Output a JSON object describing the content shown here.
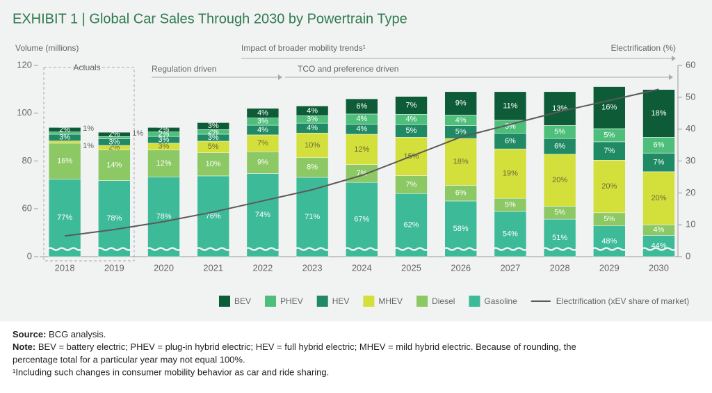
{
  "chart_data": {
    "type": "bar",
    "title": "EXHIBIT 1 | Global Car Sales Through 2030 by Powertrain Type",
    "y_label": "Volume (millions)",
    "y2_label": "Electrification (%)",
    "annotations": {
      "actuals": "Actuals",
      "mobility": "Impact of broader mobility trends¹",
      "regulation": "Regulation driven",
      "tco": "TCO and preference driven"
    },
    "categories": [
      "2018",
      "2019",
      "2020",
      "2021",
      "2022",
      "2023",
      "2024",
      "2025",
      "2026",
      "2027",
      "2028",
      "2029",
      "2030"
    ],
    "totals": [
      94,
      92,
      94,
      97,
      101,
      103,
      106,
      107,
      109,
      109,
      109,
      110,
      111
    ],
    "ylim": [
      0,
      120
    ],
    "yticks": [
      0,
      60,
      80,
      100,
      120
    ],
    "y2lim": [
      0,
      60
    ],
    "y2ticks": [
      0,
      10,
      20,
      30,
      40,
      50,
      60
    ],
    "grid": false,
    "series": [
      {
        "name": "Gasoline",
        "color": "#3dba98",
        "values": [
          77,
          78,
          78,
          76,
          74,
          71,
          67,
          62,
          58,
          54,
          51,
          48,
          44
        ],
        "value_labels": [
          "77%",
          "78%",
          "78%",
          "76%",
          "74%",
          "71%",
          "67%",
          "62%",
          "58%",
          "54%",
          "51%",
          "48%",
          "44%"
        ]
      },
      {
        "name": "Diesel",
        "color": "#8cc863",
        "values": [
          16,
          14,
          12,
          10,
          9,
          8,
          7,
          7,
          6,
          5,
          5,
          5,
          4
        ],
        "value_labels": [
          "16%",
          "14%",
          "12%",
          "10%",
          "9%",
          "8%",
          "7%",
          "7%",
          "6%",
          "5%",
          "5%",
          "5%",
          "4%"
        ]
      },
      {
        "name": "MHEV",
        "color": "#d3df3b",
        "values": [
          1,
          2,
          3,
          5,
          7,
          10,
          12,
          15,
          18,
          19,
          20,
          20,
          20
        ],
        "value_labels": [
          "1%",
          "2%",
          "3%",
          "5%",
          "7%",
          "10%",
          "12%",
          "15%",
          "18%",
          "19%",
          "20%",
          "20%",
          "20%"
        ]
      },
      {
        "name": "HEV",
        "color": "#1f8a64",
        "values": [
          3,
          3,
          3,
          3,
          4,
          4,
          4,
          5,
          5,
          6,
          6,
          7,
          7
        ],
        "value_labels": [
          "3%",
          "3%",
          "3%",
          "3%",
          "4%",
          "4%",
          "4%",
          "5%",
          "5%",
          "6%",
          "6%",
          "7%",
          "7%"
        ]
      },
      {
        "name": "PHEV",
        "color": "#4dbf7b",
        "values": [
          1,
          1,
          2,
          2,
          3,
          3,
          4,
          4,
          4,
          5,
          5,
          5,
          6
        ],
        "value_labels": [
          "1%",
          "1%",
          "2%",
          "2%",
          "3%",
          "3%",
          "4%",
          "4%",
          "4%",
          "5%",
          "5%",
          "5%",
          "6%"
        ]
      },
      {
        "name": "BEV",
        "color": "#0d5c37",
        "values": [
          2,
          2,
          2,
          3,
          4,
          4,
          6,
          7,
          9,
          11,
          13,
          16,
          18
        ],
        "value_labels": [
          "2%",
          "2%",
          "2%",
          "3%",
          "4%",
          "4%",
          "6%",
          "7%",
          "9%",
          "11%",
          "13%",
          "16%",
          "18%"
        ]
      },
      {
        "name": "Electrification (xEV share of market)",
        "color": "#5a5a5a",
        "type": "line",
        "axis": "y2",
        "values": [
          6.5,
          8.5,
          11,
          14,
          17.5,
          21,
          25.5,
          31.5,
          37.5,
          41.5,
          45.5,
          49,
          52.5
        ]
      }
    ],
    "footnotes": {
      "source_label": "Source:",
      "source_text": " BCG analysis.",
      "note_label": "Note:",
      "note_text": " BEV = battery electric; PHEV = plug-in hybrid electric; HEV = full hybrid electric; MHEV = mild hybrid electric. Because of rounding, the",
      "note_text2": "percentage total for a particular year may not equal 100%.",
      "footnote1": "¹Including such changes in consumer mobility behavior as car and ride sharing."
    }
  }
}
